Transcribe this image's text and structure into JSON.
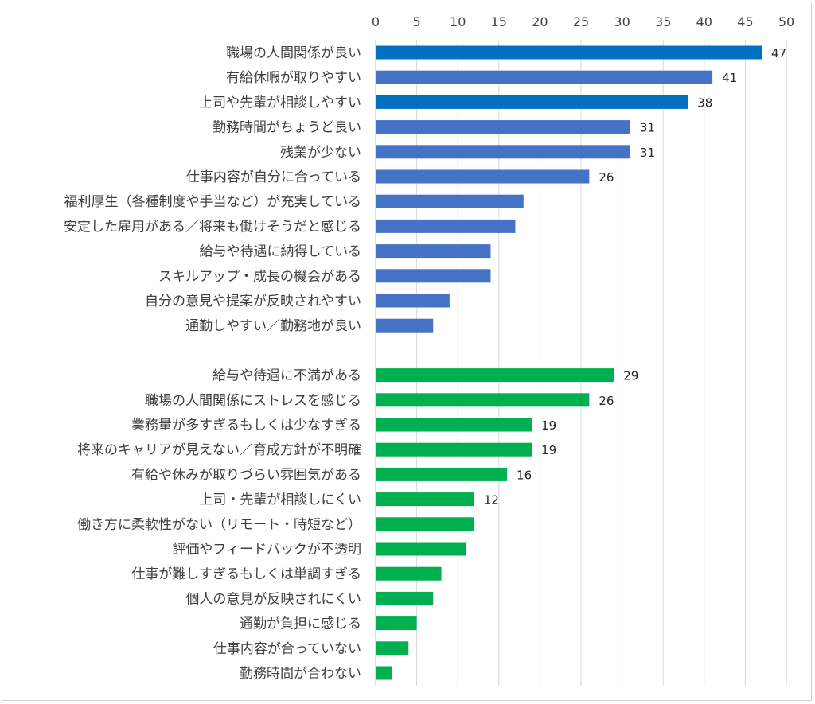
{
  "chart_data": {
    "type": "bar",
    "orientation": "horizontal",
    "title": "",
    "xlabel": "",
    "ylabel": "",
    "xlim": [
      0,
      50
    ],
    "x_ticks": [
      0,
      5,
      10,
      15,
      20,
      25,
      30,
      35,
      40,
      45,
      50
    ],
    "grid": true,
    "legend": "none",
    "groups": [
      {
        "color": "#4472C4",
        "highlight_color": "#0070C0",
        "items": [
          {
            "label": "職場の人間関係が良い",
            "value": 47,
            "labeled": true,
            "highlight": true
          },
          {
            "label": "有給休暇が取りやすい",
            "value": 41,
            "labeled": true,
            "highlight": false
          },
          {
            "label": "上司や先輩が相談しやすい",
            "value": 38,
            "labeled": true,
            "highlight": true
          },
          {
            "label": "勤務時間がちょうど良い",
            "value": 31,
            "labeled": true,
            "highlight": false
          },
          {
            "label": "残業が少ない",
            "value": 31,
            "labeled": true,
            "highlight": false
          },
          {
            "label": "仕事内容が自分に合っている",
            "value": 26,
            "labeled": true,
            "highlight": false
          },
          {
            "label": "福利厚生（各種制度や手当など）が充実している",
            "value": 18,
            "labeled": false,
            "highlight": false
          },
          {
            "label": "安定した雇用がある／将来も働けそうだと感じる",
            "value": 17,
            "labeled": false,
            "highlight": false
          },
          {
            "label": "給与や待遇に納得している",
            "value": 14,
            "labeled": false,
            "highlight": false
          },
          {
            "label": "スキルアップ・成長の機会がある",
            "value": 14,
            "labeled": false,
            "highlight": false
          },
          {
            "label": "自分の意見や提案が反映されやすい",
            "value": 9,
            "labeled": false,
            "highlight": false
          },
          {
            "label": "通勤しやすい／勤務地が良い",
            "value": 7,
            "labeled": false,
            "highlight": false
          }
        ]
      },
      {
        "color": "#00B050",
        "highlight_color": "#00B050",
        "items": [
          {
            "label": "給与や待遇に不満がある",
            "value": 29,
            "labeled": true,
            "highlight": false
          },
          {
            "label": "職場の人間関係にストレスを感じる",
            "value": 26,
            "labeled": true,
            "highlight": false
          },
          {
            "label": "業務量が多すぎるもしくは少なすぎる",
            "value": 19,
            "labeled": true,
            "highlight": false
          },
          {
            "label": "将来のキャリアが見えない／育成方針が不明確",
            "value": 19,
            "labeled": true,
            "highlight": false
          },
          {
            "label": "有給や休みが取りづらい雰囲気がある",
            "value": 16,
            "labeled": true,
            "highlight": false
          },
          {
            "label": "上司・先輩が相談しにくい",
            "value": 12,
            "labeled": true,
            "highlight": false
          },
          {
            "label": "働き方に柔軟性がない（リモート・時短など）",
            "value": 12,
            "labeled": false,
            "highlight": false
          },
          {
            "label": "評価やフィードバックが不透明",
            "value": 11,
            "labeled": false,
            "highlight": false
          },
          {
            "label": "仕事が難しすぎるもしくは単調すぎる",
            "value": 8,
            "labeled": false,
            "highlight": false
          },
          {
            "label": "個人の意見が反映されにくい",
            "value": 7,
            "labeled": false,
            "highlight": false
          },
          {
            "label": "通勤が負担に感じる",
            "value": 5,
            "labeled": false,
            "highlight": false
          },
          {
            "label": "仕事内容が合っていない",
            "value": 4,
            "labeled": false,
            "highlight": false
          },
          {
            "label": "勤務時間が合わない",
            "value": 2,
            "labeled": false,
            "highlight": false
          }
        ]
      }
    ]
  }
}
